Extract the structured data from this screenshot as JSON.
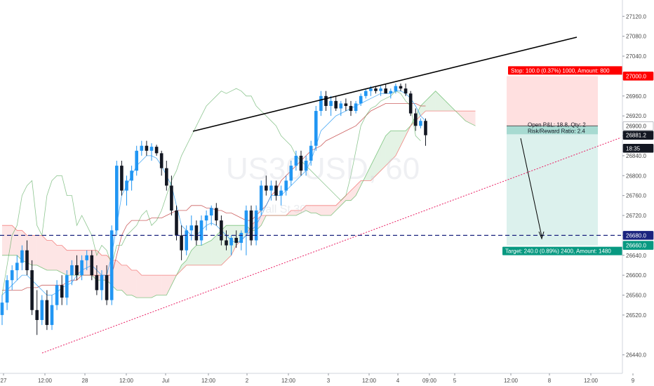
{
  "chart_data": {
    "type": "candlestick",
    "watermark": {
      "symbol": "US30USD, 60",
      "subtitle": "Wall St 30"
    },
    "y_axis": {
      "ticks": [
        26440.0,
        26520.0,
        26560.0,
        26600.0,
        26640.0,
        26680.0,
        26720.0,
        26760.0,
        26800.0,
        26840.0,
        26880.0,
        26920.0,
        26960.0,
        27040.0,
        27080.0,
        27120.0
      ],
      "tick_labels": [
        "26440.0",
        "26520.0",
        "26560.0",
        "26600.0",
        "26640.0",
        "26680.0",
        "26720.0",
        "26760.0",
        "26800.0",
        "26840.0",
        "26880.0",
        "26920.0",
        "26960.0",
        "27040.0",
        "27080.0",
        "27120.0"
      ],
      "range": [
        26400,
        27150
      ]
    },
    "x_axis": {
      "tick_labels": [
        "27",
        "12:00",
        "28",
        "12:00",
        "Jul",
        "12:00",
        "2",
        "12:00",
        "3",
        "12:00",
        "4",
        "09:00",
        "5",
        "12:00",
        "8",
        "12:00",
        "9"
      ]
    },
    "price_badges": [
      {
        "label": "27000.0",
        "color": "#ff0000",
        "text_color": "#ffffff",
        "value": 27000.0
      },
      {
        "label": "26900.0",
        "color": "#ffffff",
        "text_color": "#333333",
        "value": 26900.0
      },
      {
        "label": "26881.2",
        "color": "#131722",
        "text_color": "#ffffff",
        "value": 26881.2
      },
      {
        "label": "18:35",
        "color": "#131722",
        "text_color": "#ffffff",
        "value": 26855.0
      },
      {
        "label": "26680.0",
        "color": "#1a237e",
        "text_color": "#ffffff",
        "value": 26680.0
      },
      {
        "label": "26660.0",
        "color": "#089981",
        "text_color": "#ffffff",
        "value": 26660.0
      }
    ],
    "position_tool": {
      "stop_text": "Stop: 100.0 (0.37%) 1000, Amount: 800",
      "pnl_text": "Open P&L: 18.8, Qty: 2",
      "rr_text": "Risk/Reward Ratio: 2.4",
      "target_text": "Target: 240.0 (0.89%) 2400, Amount: 1480",
      "entry": 26900.0,
      "stop": 27000.0,
      "target": 26660.0,
      "stop_color": "#ff0000",
      "target_color": "#089981"
    },
    "horizontal_line": {
      "value": 26680.0,
      "color": "#1a237e",
      "style": "dashed"
    },
    "colors": {
      "up_candle": "#2196f3",
      "down_candle": "#131722",
      "cloud_bull": "#4caf50",
      "cloud_bear": "#ef5350",
      "tenkan": "#2196f3",
      "kijun": "#b71c1c",
      "chikou": "#43a047",
      "resistance_line": "#000000",
      "support_line": "#e91e63",
      "projection_arrow": "#000000"
    },
    "candles": [
      {
        "o": 26520,
        "h": 26560,
        "l": 26500,
        "c": 26545
      },
      {
        "o": 26545,
        "h": 26600,
        "l": 26530,
        "c": 26590
      },
      {
        "o": 26590,
        "h": 26620,
        "l": 26570,
        "c": 26610
      },
      {
        "o": 26610,
        "h": 26640,
        "l": 26590,
        "c": 26625
      },
      {
        "o": 26625,
        "h": 26660,
        "l": 26610,
        "c": 26650
      },
      {
        "o": 26650,
        "h": 26670,
        "l": 26600,
        "c": 26610
      },
      {
        "o": 26610,
        "h": 26630,
        "l": 26520,
        "c": 26530
      },
      {
        "o": 26530,
        "h": 26570,
        "l": 26480,
        "c": 26510
      },
      {
        "o": 26510,
        "h": 26560,
        "l": 26500,
        "c": 26550
      },
      {
        "o": 26550,
        "h": 26570,
        "l": 26490,
        "c": 26500
      },
      {
        "o": 26500,
        "h": 26560,
        "l": 26490,
        "c": 26540
      },
      {
        "o": 26540,
        "h": 26590,
        "l": 26530,
        "c": 26580
      },
      {
        "o": 26580,
        "h": 26600,
        "l": 26540,
        "c": 26555
      },
      {
        "o": 26555,
        "h": 26610,
        "l": 26540,
        "c": 26600
      },
      {
        "o": 26600,
        "h": 26630,
        "l": 26580,
        "c": 26620
      },
      {
        "o": 26620,
        "h": 26640,
        "l": 26590,
        "c": 26600
      },
      {
        "o": 26600,
        "h": 26640,
        "l": 26590,
        "c": 26630
      },
      {
        "o": 26630,
        "h": 26650,
        "l": 26610,
        "c": 26640
      },
      {
        "o": 26640,
        "h": 26650,
        "l": 26590,
        "c": 26600
      },
      {
        "o": 26600,
        "h": 26620,
        "l": 26560,
        "c": 26570
      },
      {
        "o": 26570,
        "h": 26610,
        "l": 26550,
        "c": 26600
      },
      {
        "o": 26600,
        "h": 26620,
        "l": 26540,
        "c": 26550
      },
      {
        "o": 26550,
        "h": 26700,
        "l": 26540,
        "c": 26690
      },
      {
        "o": 26690,
        "h": 26830,
        "l": 26680,
        "c": 26820
      },
      {
        "o": 26820,
        "h": 26830,
        "l": 26760,
        "c": 26770
      },
      {
        "o": 26770,
        "h": 26800,
        "l": 26740,
        "c": 26790
      },
      {
        "o": 26790,
        "h": 26820,
        "l": 26770,
        "c": 26810
      },
      {
        "o": 26810,
        "h": 26860,
        "l": 26800,
        "c": 26850
      },
      {
        "o": 26850,
        "h": 26870,
        "l": 26840,
        "c": 26860
      },
      {
        "o": 26860,
        "h": 26870,
        "l": 26840,
        "c": 26850
      },
      {
        "o": 26850,
        "h": 26865,
        "l": 26830,
        "c": 26858
      },
      {
        "o": 26858,
        "h": 26862,
        "l": 26840,
        "c": 26845
      },
      {
        "o": 26845,
        "h": 26850,
        "l": 26800,
        "c": 26815
      },
      {
        "o": 26815,
        "h": 26830,
        "l": 26770,
        "c": 26780
      },
      {
        "o": 26780,
        "h": 26800,
        "l": 26720,
        "c": 26730
      },
      {
        "o": 26730,
        "h": 26740,
        "l": 26670,
        "c": 26680
      },
      {
        "o": 26680,
        "h": 26700,
        "l": 26630,
        "c": 26650
      },
      {
        "o": 26650,
        "h": 26700,
        "l": 26640,
        "c": 26690
      },
      {
        "o": 26690,
        "h": 26720,
        "l": 26670,
        "c": 26700
      },
      {
        "o": 26700,
        "h": 26710,
        "l": 26660,
        "c": 26670
      },
      {
        "o": 26670,
        "h": 26720,
        "l": 26660,
        "c": 26710
      },
      {
        "o": 26710,
        "h": 26730,
        "l": 26690,
        "c": 26720
      },
      {
        "o": 26720,
        "h": 26740,
        "l": 26700,
        "c": 26735
      },
      {
        "o": 26735,
        "h": 26745,
        "l": 26700,
        "c": 26710
      },
      {
        "o": 26710,
        "h": 26720,
        "l": 26660,
        "c": 26670
      },
      {
        "o": 26670,
        "h": 26690,
        "l": 26650,
        "c": 26660
      },
      {
        "o": 26660,
        "h": 26680,
        "l": 26640,
        "c": 26675
      },
      {
        "o": 26675,
        "h": 26690,
        "l": 26655,
        "c": 26665
      },
      {
        "o": 26665,
        "h": 26690,
        "l": 26650,
        "c": 26685
      },
      {
        "o": 26685,
        "h": 26740,
        "l": 26640,
        "c": 26730
      },
      {
        "o": 26730,
        "h": 26740,
        "l": 26660,
        "c": 26670
      },
      {
        "o": 26670,
        "h": 26740,
        "l": 26660,
        "c": 26730
      },
      {
        "o": 26730,
        "h": 26790,
        "l": 26720,
        "c": 26780
      },
      {
        "o": 26780,
        "h": 26800,
        "l": 26760,
        "c": 26770
      },
      {
        "o": 26770,
        "h": 26790,
        "l": 26750,
        "c": 26780
      },
      {
        "o": 26780,
        "h": 26790,
        "l": 26750,
        "c": 26760
      },
      {
        "o": 26760,
        "h": 26780,
        "l": 26740,
        "c": 26770
      },
      {
        "o": 26770,
        "h": 26800,
        "l": 26760,
        "c": 26790
      },
      {
        "o": 26790,
        "h": 26830,
        "l": 26780,
        "c": 26820
      },
      {
        "o": 26820,
        "h": 26850,
        "l": 26810,
        "c": 26840
      },
      {
        "o": 26840,
        "h": 26850,
        "l": 26800,
        "c": 26810
      },
      {
        "o": 26810,
        "h": 26840,
        "l": 26800,
        "c": 26830
      },
      {
        "o": 26830,
        "h": 26870,
        "l": 26820,
        "c": 26860
      },
      {
        "o": 26860,
        "h": 26940,
        "l": 26850,
        "c": 26930
      },
      {
        "o": 26930,
        "h": 26970,
        "l": 26920,
        "c": 26960
      },
      {
        "o": 26960,
        "h": 26970,
        "l": 26930,
        "c": 26940
      },
      {
        "o": 26940,
        "h": 26960,
        "l": 26920,
        "c": 26950
      },
      {
        "o": 26950,
        "h": 26960,
        "l": 26930,
        "c": 26935
      },
      {
        "o": 26935,
        "h": 26950,
        "l": 26920,
        "c": 26945
      },
      {
        "o": 26945,
        "h": 26955,
        "l": 26930,
        "c": 26940
      },
      {
        "o": 26940,
        "h": 26950,
        "l": 26920,
        "c": 26930
      },
      {
        "o": 26930,
        "h": 26950,
        "l": 26925,
        "c": 26945
      },
      {
        "o": 26945,
        "h": 26965,
        "l": 26940,
        "c": 26960
      },
      {
        "o": 26960,
        "h": 26975,
        "l": 26955,
        "c": 26970
      },
      {
        "o": 26970,
        "h": 26980,
        "l": 26960,
        "c": 26975
      },
      {
        "o": 26975,
        "h": 26980,
        "l": 26965,
        "c": 26970
      },
      {
        "o": 26970,
        "h": 26980,
        "l": 26960,
        "c": 26975
      },
      {
        "o": 26975,
        "h": 26985,
        "l": 26965,
        "c": 26965
      },
      {
        "o": 26965,
        "h": 26975,
        "l": 26955,
        "c": 26970
      },
      {
        "o": 26970,
        "h": 26985,
        "l": 26965,
        "c": 26980
      },
      {
        "o": 26980,
        "h": 26985,
        "l": 26970,
        "c": 26975
      },
      {
        "o": 26975,
        "h": 26985,
        "l": 26960,
        "c": 26965
      },
      {
        "o": 26965,
        "h": 26970,
        "l": 26920,
        "c": 26925
      },
      {
        "o": 26925,
        "h": 26935,
        "l": 26890,
        "c": 26900
      },
      {
        "o": 26900,
        "h": 26915,
        "l": 26895,
        "c": 26910
      },
      {
        "o": 26910,
        "h": 26915,
        "l": 26860,
        "c": 26881.2
      }
    ],
    "tenkan": [
      26560,
      26570,
      26580,
      26590,
      26600,
      26600,
      26590,
      26580,
      26570,
      26560,
      26560,
      26565,
      26575,
      26580,
      26585,
      26600,
      26610,
      26615,
      26620,
      26610,
      26600,
      26600,
      26640,
      26700,
      26760,
      26780,
      26800,
      26820,
      26830,
      26840,
      26840,
      26835,
      26820,
      26800,
      26780,
      26740,
      26700,
      26690,
      26680,
      26680,
      26690,
      26700,
      26705,
      26700,
      26690,
      26680,
      26670,
      26665,
      26670,
      26680,
      26690,
      26700,
      26720,
      26740,
      26760,
      26760,
      26760,
      26770,
      26780,
      26790,
      26800,
      26810,
      26830,
      26860,
      26890,
      26900,
      26910,
      26920,
      26925,
      26930,
      26935,
      26940,
      26945,
      26950,
      26955,
      26960,
      26965,
      26965,
      26965,
      26970,
      26970,
      26965,
      26955,
      26940,
      26920,
      26910
    ],
    "kijun": [
      26570,
      26570,
      26570,
      26570,
      26570,
      26575,
      26575,
      26575,
      26580,
      26580,
      26580,
      26580,
      26580,
      26585,
      26590,
      26590,
      26600,
      26600,
      26600,
      26600,
      26600,
      26600,
      26600,
      26640,
      26680,
      26700,
      26710,
      26710,
      26710,
      26710,
      26715,
      26715,
      26715,
      26720,
      26725,
      26730,
      26730,
      26730,
      26740,
      26740,
      26740,
      26735,
      26735,
      26730,
      26730,
      26725,
      26725,
      26720,
      26715,
      26710,
      26710,
      26720,
      26730,
      26740,
      26760,
      26770,
      26790,
      26800,
      26810,
      26820,
      26830,
      26840,
      26850,
      26855,
      26860,
      26870,
      26875,
      26880,
      26885,
      26890,
      26895,
      26900,
      26910,
      26920,
      26930,
      26935,
      26940,
      26945,
      26945,
      26945,
      26945,
      26945,
      26945,
      26945,
      26940,
      26940
    ],
    "senkou_a": [
      26640,
      26640,
      26640,
      26640,
      26630,
      26625,
      26620,
      26620,
      26615,
      26610,
      26610,
      26610,
      26605,
      26600,
      26600,
      26600,
      26600,
      26600,
      26600,
      26590,
      26590,
      26590,
      26580,
      26570,
      26570,
      26560,
      26560,
      26555,
      26555,
      26555,
      26555,
      26560,
      26560,
      26560,
      26580,
      26600,
      26620,
      26630,
      26650,
      26660,
      26660,
      26665,
      26670,
      26680,
      26690,
      26700,
      26700,
      26700,
      26700,
      26700,
      26690,
      26690,
      26700,
      26720,
      26720,
      26720,
      26720,
      26720,
      26720,
      26720,
      26725,
      26730,
      26725,
      26725,
      26720,
      26720,
      26720,
      26730,
      26740,
      26750,
      26750,
      26760,
      26780,
      26800,
      26820,
      26840,
      26860,
      26880,
      26890,
      26890,
      26890,
      26890,
      26900,
      26920,
      26940,
      26950,
      26960,
      26970,
      26960,
      26950,
      26940,
      26930,
      26920,
      26910,
      26905,
      26900
    ],
    "senkou_b": [
      26700,
      26700,
      26700,
      26690,
      26690,
      26680,
      26680,
      26680,
      26680,
      26670,
      26670,
      26660,
      26660,
      26650,
      26650,
      26650,
      26650,
      26650,
      26650,
      26650,
      26640,
      26640,
      26630,
      26630,
      26620,
      26620,
      26610,
      26610,
      26600,
      26600,
      26600,
      26600,
      26600,
      26600,
      26600,
      26600,
      26610,
      26620,
      26620,
      26620,
      26620,
      26620,
      26620,
      26620,
      26620,
      26630,
      26640,
      26660,
      26670,
      26680,
      26700,
      26710,
      26720,
      26720,
      26720,
      26720,
      26720,
      26720,
      26730,
      26730,
      26730,
      26740,
      26740,
      26740,
      26740,
      26740,
      26740,
      26740,
      26750,
      26760,
      26770,
      26780,
      26790,
      26790,
      26790,
      26800,
      26810,
      26820,
      26830,
      26840,
      26860,
      26880,
      26900,
      26910,
      26920,
      26930,
      26930,
      26930,
      26930,
      26930,
      26930,
      26930,
      26930,
      26930,
      26930,
      26930
    ],
    "chikou": [
      26560,
      26620,
      26680,
      26700,
      26760,
      26780,
      26790,
      26700,
      26680,
      26760,
      26790,
      26800,
      26800,
      26760,
      26760,
      26700,
      26720,
      26700,
      26680,
      26640,
      26660,
      26650,
      26620,
      26660,
      26660,
      26680,
      26690,
      26700,
      26720,
      26730,
      26700,
      26710,
      26730,
      26760,
      26790,
      26810,
      26840,
      26860,
      26880,
      26900,
      26920,
      26940,
      26950,
      26960,
      26970,
      26965,
      26970,
      26975,
      26970,
      26960,
      26960,
      26940,
      26930,
      26920,
      26910,
      26900,
      26880,
      26870,
      26860,
      26840,
      26830,
      26820,
      26810,
      26800,
      26790,
      26780,
      26770,
      26760,
      26750,
      26760,
      26800,
      26850,
      26900,
      26920,
      26935,
      26940,
      26950,
      26955,
      26960,
      26970,
      26965,
      26950,
      26940,
      26880,
      26870
    ]
  }
}
